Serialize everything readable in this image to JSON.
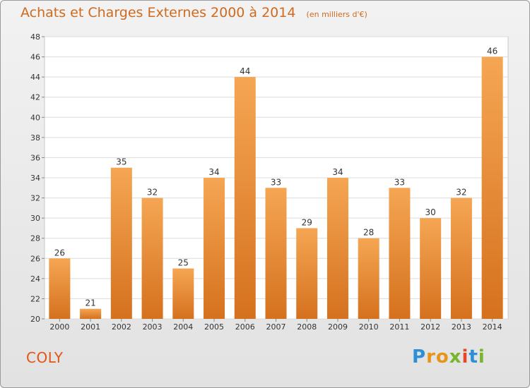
{
  "header": {
    "title": "Achats et Charges Externes 2000 à 2014",
    "unit": "(en milliers d'€)"
  },
  "footer": {
    "town": "COLY",
    "brand": "Proxiti"
  },
  "colors": {
    "bar_top": "#f5a653",
    "bar_bottom": "#d5711e",
    "text_orange": "#d06a1f",
    "town": "#e05518"
  },
  "chart_data": {
    "type": "bar",
    "title": "Achats et Charges Externes 2000 à 2014",
    "subtitle": "(en milliers d'€)",
    "categories": [
      "2000",
      "2001",
      "2002",
      "2003",
      "2004",
      "2005",
      "2006",
      "2007",
      "2008",
      "2009",
      "2010",
      "2011",
      "2012",
      "2013",
      "2014"
    ],
    "values": [
      26,
      21,
      35,
      32,
      25,
      34,
      44,
      33,
      29,
      34,
      28,
      33,
      30,
      32,
      46
    ],
    "ylim": [
      20,
      48
    ],
    "yticks": [
      20,
      22,
      24,
      26,
      28,
      30,
      32,
      34,
      36,
      38,
      40,
      42,
      44,
      46,
      48
    ],
    "grid": true,
    "legend": "none"
  }
}
